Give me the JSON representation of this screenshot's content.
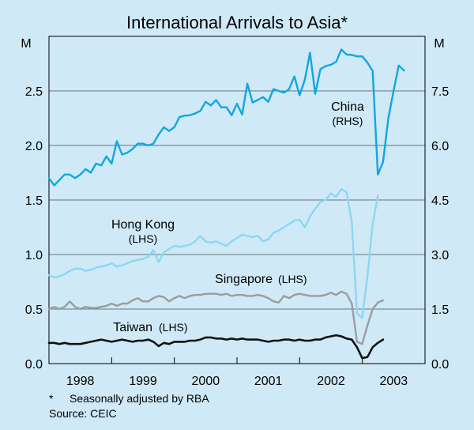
{
  "chart_data": {
    "type": "line",
    "title": "International Arrivals to Asia*",
    "left_axis": {
      "unit": "M",
      "ylim": [
        0,
        3.0
      ],
      "ticks": [
        "0.0",
        "0.5",
        "1.0",
        "1.5",
        "2.0",
        "2.5"
      ],
      "tick_values": [
        0,
        0.5,
        1.0,
        1.5,
        2.0,
        2.5
      ]
    },
    "right_axis": {
      "unit": "M",
      "ylim": [
        0,
        9.0
      ],
      "ticks": [
        "0.0",
        "1.5",
        "3.0",
        "4.5",
        "6.0",
        "7.5"
      ],
      "tick_values": [
        0,
        1.5,
        3.0,
        4.5,
        6.0,
        7.5
      ]
    },
    "x_axis": {
      "range": [
        1997.5,
        2003.5
      ],
      "year_labels": [
        "1998",
        "1999",
        "2000",
        "2001",
        "2002",
        "2003"
      ],
      "year_label_positions": [
        1998.0,
        1999.0,
        2000.0,
        2001.0,
        2002.0,
        2003.0
      ],
      "year_boundaries": [
        1998.5,
        1999.5,
        2000.5,
        2001.5,
        2002.5
      ]
    },
    "grid": true,
    "series_start": 1997.5,
    "series_step": 0.0833,
    "series": [
      {
        "name": "China",
        "axis_label": "(RHS)",
        "axis": "right",
        "color": "#12a6e0",
        "values": [
          5.1,
          4.9,
          5.05,
          5.2,
          5.2,
          5.1,
          5.2,
          5.35,
          5.25,
          5.5,
          5.45,
          5.7,
          5.5,
          6.12,
          5.75,
          5.8,
          5.9,
          6.05,
          6.05,
          6.0,
          6.05,
          6.3,
          6.5,
          6.4,
          6.5,
          6.78,
          6.82,
          6.83,
          6.88,
          6.95,
          7.2,
          7.1,
          7.25,
          7.05,
          7.05,
          6.83,
          7.15,
          6.85,
          7.7,
          7.18,
          7.25,
          7.33,
          7.2,
          7.55,
          7.5,
          7.45,
          7.55,
          7.9,
          7.38,
          7.8,
          8.55,
          7.42,
          8.1,
          8.18,
          8.22,
          8.3,
          8.64,
          8.5,
          8.49,
          8.45,
          8.45,
          8.28,
          8.05,
          5.2,
          5.55,
          6.75,
          7.5,
          8.2,
          8.06
        ]
      },
      {
        "name": "Hong Kong",
        "axis_label": "(LHS)",
        "axis": "left",
        "color": "#8dd6f4",
        "values": [
          0.81,
          0.79,
          0.8,
          0.82,
          0.85,
          0.87,
          0.87,
          0.85,
          0.86,
          0.88,
          0.89,
          0.9,
          0.92,
          0.89,
          0.9,
          0.92,
          0.94,
          0.95,
          0.96,
          0.98,
          1.04,
          0.93,
          1.02,
          1.05,
          1.08,
          1.07,
          1.08,
          1.09,
          1.12,
          1.17,
          1.12,
          1.11,
          1.12,
          1.1,
          1.08,
          1.12,
          1.15,
          1.18,
          1.17,
          1.16,
          1.17,
          1.12,
          1.14,
          1.2,
          1.22,
          1.25,
          1.28,
          1.31,
          1.32,
          1.25,
          1.35,
          1.42,
          1.48,
          1.5,
          1.56,
          1.53,
          1.6,
          1.57,
          1.3,
          0.46,
          0.42,
          0.8,
          1.28,
          1.54
        ]
      },
      {
        "name": "Singapore",
        "axis_label": "(LHS)",
        "axis": "left",
        "color": "#9c9c9c",
        "values": [
          0.5,
          0.52,
          0.5,
          0.52,
          0.57,
          0.52,
          0.5,
          0.52,
          0.51,
          0.51,
          0.52,
          0.53,
          0.55,
          0.53,
          0.55,
          0.55,
          0.58,
          0.6,
          0.57,
          0.57,
          0.6,
          0.62,
          0.61,
          0.57,
          0.6,
          0.62,
          0.6,
          0.62,
          0.63,
          0.63,
          0.64,
          0.64,
          0.64,
          0.63,
          0.64,
          0.62,
          0.63,
          0.63,
          0.62,
          0.62,
          0.63,
          0.62,
          0.6,
          0.57,
          0.56,
          0.62,
          0.6,
          0.63,
          0.64,
          0.63,
          0.62,
          0.62,
          0.62,
          0.63,
          0.65,
          0.63,
          0.66,
          0.64,
          0.55,
          0.2,
          0.18,
          0.35,
          0.5,
          0.56,
          0.58
        ]
      },
      {
        "name": "Taiwan",
        "axis_label": "(LHS)",
        "axis": "left",
        "color": "#111111",
        "values": [
          0.19,
          0.19,
          0.18,
          0.19,
          0.18,
          0.18,
          0.18,
          0.19,
          0.2,
          0.21,
          0.22,
          0.21,
          0.2,
          0.21,
          0.22,
          0.21,
          0.2,
          0.21,
          0.21,
          0.22,
          0.2,
          0.16,
          0.19,
          0.18,
          0.2,
          0.2,
          0.2,
          0.21,
          0.21,
          0.22,
          0.24,
          0.24,
          0.23,
          0.23,
          0.22,
          0.23,
          0.22,
          0.23,
          0.22,
          0.22,
          0.22,
          0.21,
          0.2,
          0.21,
          0.21,
          0.22,
          0.22,
          0.21,
          0.22,
          0.21,
          0.21,
          0.22,
          0.22,
          0.24,
          0.25,
          0.26,
          0.25,
          0.23,
          0.22,
          0.15,
          0.05,
          0.06,
          0.15,
          0.19,
          0.22
        ]
      }
    ]
  },
  "footnote": {
    "marker": "*",
    "text": "Seasonally adjusted by RBA",
    "source": "Source: CEIC"
  }
}
